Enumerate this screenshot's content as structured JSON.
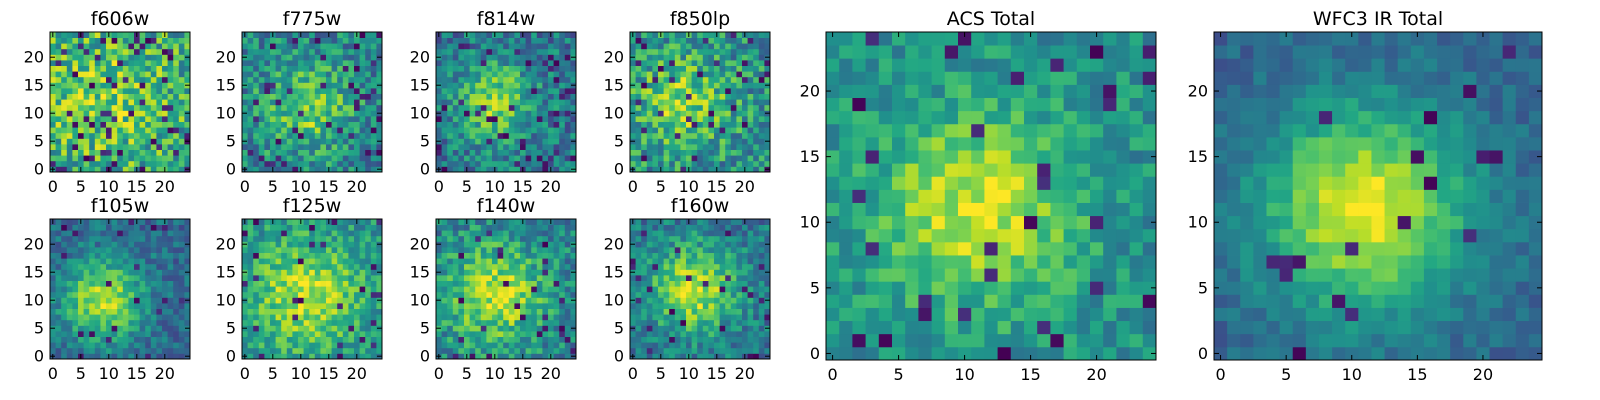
{
  "figure": {
    "description_free": true,
    "colormap": "viridis"
  },
  "chart_data": [
    {
      "type": "heatmap",
      "title": "f606w",
      "id": "f606w",
      "xlim": [
        -0.5,
        24.5
      ],
      "ylim": [
        -0.5,
        24.5
      ],
      "xticks": [
        0,
        5,
        10,
        15,
        20
      ],
      "yticks": [
        0,
        5,
        10,
        15,
        20
      ],
      "grid_size": 25,
      "seed": 11,
      "peak": [
        9,
        13
      ],
      "sigma": 6.5,
      "signal": 0.18,
      "noise": 0.55,
      "base": 0.62,
      "dark_fraction": 0.1
    },
    {
      "type": "heatmap",
      "title": "f775w",
      "id": "f775w",
      "xlim": [
        -0.5,
        24.5
      ],
      "ylim": [
        -0.5,
        24.5
      ],
      "xticks": [
        0,
        5,
        10,
        15,
        20
      ],
      "yticks": [
        0,
        5,
        10,
        15,
        20
      ],
      "grid_size": 25,
      "seed": 23,
      "peak": [
        11,
        11
      ],
      "sigma": 5.5,
      "signal": 0.35,
      "noise": 0.45,
      "base": 0.45,
      "dark_fraction": 0.06
    },
    {
      "type": "heatmap",
      "title": "f814w",
      "id": "f814w",
      "xlim": [
        -0.5,
        24.5
      ],
      "ylim": [
        -0.5,
        24.5
      ],
      "xticks": [
        0,
        5,
        10,
        15,
        20
      ],
      "yticks": [
        0,
        5,
        10,
        15,
        20
      ],
      "grid_size": 25,
      "seed": 37,
      "peak": [
        10,
        12
      ],
      "sigma": 5.0,
      "signal": 0.4,
      "noise": 0.42,
      "base": 0.4,
      "dark_fraction": 0.07
    },
    {
      "type": "heatmap",
      "title": "f850lp",
      "id": "f850lp",
      "xlim": [
        -0.5,
        24.5
      ],
      "ylim": [
        -0.5,
        24.5
      ],
      "xticks": [
        0,
        5,
        10,
        15,
        20
      ],
      "yticks": [
        0,
        5,
        10,
        15,
        20
      ],
      "grid_size": 25,
      "seed": 41,
      "peak": [
        9,
        12
      ],
      "sigma": 6.0,
      "signal": 0.3,
      "noise": 0.48,
      "base": 0.5,
      "dark_fraction": 0.08
    },
    {
      "type": "heatmap",
      "title": "f105w",
      "id": "f105w",
      "xlim": [
        -0.5,
        24.5
      ],
      "ylim": [
        -0.5,
        24.5
      ],
      "xticks": [
        0,
        5,
        10,
        15,
        20
      ],
      "yticks": [
        0,
        5,
        10,
        15,
        20
      ],
      "grid_size": 25,
      "seed": 53,
      "peak": [
        9,
        10
      ],
      "sigma": 5.0,
      "signal": 0.55,
      "noise": 0.3,
      "base": 0.35,
      "dark_fraction": 0.04
    },
    {
      "type": "heatmap",
      "title": "f125w",
      "id": "f125w",
      "xlim": [
        -0.5,
        24.5
      ],
      "ylim": [
        -0.5,
        24.5
      ],
      "xticks": [
        0,
        5,
        10,
        15,
        20
      ],
      "yticks": [
        0,
        5,
        10,
        15,
        20
      ],
      "grid_size": 25,
      "seed": 67,
      "peak": [
        11,
        11
      ],
      "sigma": 7.0,
      "signal": 0.4,
      "noise": 0.35,
      "base": 0.5,
      "dark_fraction": 0.04
    },
    {
      "type": "heatmap",
      "title": "f140w",
      "id": "f140w",
      "xlim": [
        -0.5,
        24.5
      ],
      "ylim": [
        -0.5,
        24.5
      ],
      "xticks": [
        0,
        5,
        10,
        15,
        20
      ],
      "yticks": [
        0,
        5,
        10,
        15,
        20
      ],
      "grid_size": 25,
      "seed": 79,
      "peak": [
        10,
        11
      ],
      "sigma": 6.0,
      "signal": 0.45,
      "noise": 0.4,
      "base": 0.45,
      "dark_fraction": 0.05
    },
    {
      "type": "heatmap",
      "title": "f160w",
      "id": "f160w",
      "xlim": [
        -0.5,
        24.5
      ],
      "ylim": [
        -0.5,
        24.5
      ],
      "xticks": [
        0,
        5,
        10,
        15,
        20
      ],
      "yticks": [
        0,
        5,
        10,
        15,
        20
      ],
      "grid_size": 25,
      "seed": 83,
      "peak": [
        11,
        12
      ],
      "sigma": 5.5,
      "signal": 0.5,
      "noise": 0.35,
      "base": 0.4,
      "dark_fraction": 0.05
    },
    {
      "type": "heatmap",
      "title": "ACS Total",
      "id": "acs-total",
      "xlim": [
        -0.5,
        24.5
      ],
      "ylim": [
        -0.5,
        24.5
      ],
      "xticks": [
        0,
        5,
        10,
        15,
        20
      ],
      "yticks": [
        0,
        5,
        10,
        15,
        20
      ],
      "grid_size": 25,
      "seed": 97,
      "peak": [
        11,
        11
      ],
      "sigma": 5.0,
      "signal": 0.45,
      "noise": 0.3,
      "base": 0.5,
      "dark_fraction": 0.05
    },
    {
      "type": "heatmap",
      "title": "WFC3 IR Total",
      "id": "wfc3-ir-total",
      "xlim": [
        -0.5,
        24.5
      ],
      "ylim": [
        -0.5,
        24.5
      ],
      "xticks": [
        0,
        5,
        10,
        15,
        20
      ],
      "yticks": [
        0,
        5,
        10,
        15,
        20
      ],
      "grid_size": 25,
      "seed": 101,
      "peak": [
        11,
        11
      ],
      "sigma": 5.5,
      "signal": 0.65,
      "noise": 0.18,
      "base": 0.32,
      "dark_fraction": 0.03
    }
  ]
}
